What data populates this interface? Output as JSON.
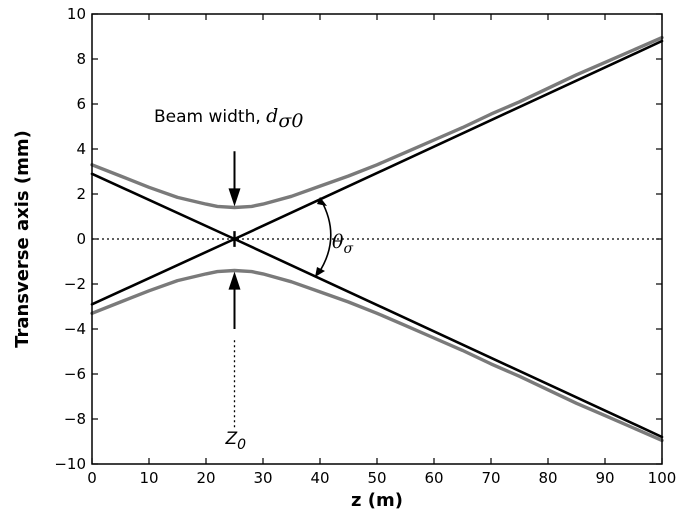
{
  "chart_data": {
    "type": "line",
    "xlabel": "z (m)",
    "ylabel": "Transverse axis (mm)",
    "xlim": [
      0,
      100
    ],
    "ylim": [
      -10,
      10
    ],
    "xticks": [
      "0",
      "10",
      "20",
      "30",
      "40",
      "50",
      "60",
      "70",
      "80",
      "90",
      "100"
    ],
    "yticks": [
      "10",
      "8",
      "6",
      "4",
      "2",
      "0",
      "−2",
      "−4",
      "−6",
      "−8",
      "−10"
    ],
    "grid": false,
    "series": [
      {
        "name": "",
        "style": "beam envelope (upper)",
        "color": "#7a7a7a",
        "x": [
          0,
          5,
          10,
          15,
          20,
          22,
          25,
          28,
          30,
          35,
          40,
          45,
          50,
          55,
          60,
          65,
          70,
          75,
          80,
          85,
          90,
          95,
          100
        ],
        "y": [
          3.3,
          2.8,
          2.3,
          1.85,
          1.55,
          1.45,
          1.4,
          1.45,
          1.55,
          1.9,
          2.35,
          2.8,
          3.3,
          3.85,
          4.4,
          4.95,
          5.55,
          6.1,
          6.7,
          7.3,
          7.85,
          8.4,
          8.95
        ]
      },
      {
        "name": "",
        "style": "beam envelope (lower)",
        "color": "#7a7a7a",
        "x": [
          0,
          5,
          10,
          15,
          20,
          22,
          25,
          28,
          30,
          35,
          40,
          45,
          50,
          55,
          60,
          65,
          70,
          75,
          80,
          85,
          90,
          95,
          100
        ],
        "y": [
          -3.3,
          -2.8,
          -2.3,
          -1.85,
          -1.55,
          -1.45,
          -1.4,
          -1.45,
          -1.55,
          -1.9,
          -2.35,
          -2.8,
          -3.3,
          -3.85,
          -4.4,
          -4.95,
          -5.55,
          -6.1,
          -6.7,
          -7.3,
          -7.85,
          -8.4,
          -8.95
        ]
      },
      {
        "name": "",
        "style": "asymptote",
        "color": "#000000",
        "x": [
          0,
          25,
          100
        ],
        "y": [
          -2.9,
          0,
          8.8
        ]
      },
      {
        "name": "",
        "style": "asymptote",
        "color": "#000000",
        "x": [
          0,
          25,
          100
        ],
        "y": [
          2.9,
          0,
          -8.8
        ]
      }
    ],
    "annotations": {
      "beam_width_text": "Beam width, ",
      "beam_width_symbol": "d",
      "beam_width_subscript": "σ0",
      "divergence_symbol": "θ",
      "divergence_subscript": "σ",
      "waist_symbol": "Z",
      "waist_subscript": "0",
      "waist_position": 25
    }
  }
}
